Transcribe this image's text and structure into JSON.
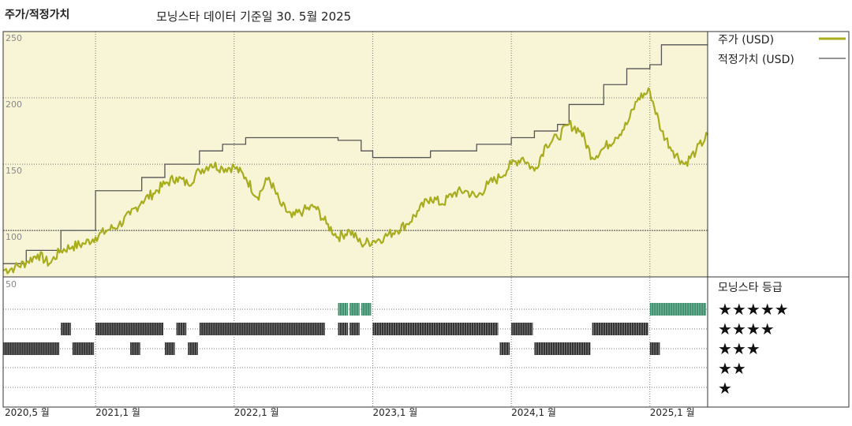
{
  "header": {
    "title": "주가/적정가치",
    "subtitle": "모닝스타 데이터 기준일 30. 5월 2025"
  },
  "colors": {
    "price": "#a8ad1e",
    "fair": "#555555",
    "upper_bg": "#f8f4d6",
    "rating_5": "#3d8f6e",
    "rating_other": "#333333",
    "grid": "#777777"
  },
  "legend": {
    "price_label": "주가 (USD)",
    "fair_label": "적정가치 (USD)"
  },
  "rating_panel": {
    "title": "모닝스타 등급",
    "stars": [
      "★★★★★",
      "★★★★",
      "★★★",
      "★★",
      "★"
    ],
    "scale_label": "50"
  },
  "chart_data": {
    "type": "line",
    "title": "주가/적정가치",
    "subtitle": "모닝스타 데이터 기준일 30. 5월 2025",
    "xlabel": "",
    "ylabel": "",
    "x_range": [
      "2020-05",
      "2025-06"
    ],
    "ylim": [
      65,
      250
    ],
    "y_ticks": [
      100,
      150,
      200,
      250
    ],
    "x_tick_labels": [
      {
        "date": "2020-05",
        "label": "2020,5 월"
      },
      {
        "date": "2021-01",
        "label": "2021,1 월"
      },
      {
        "date": "2022-01",
        "label": "2022,1 월"
      },
      {
        "date": "2023-01",
        "label": "2023,1 월"
      },
      {
        "date": "2024-01",
        "label": "2024,1 월"
      },
      {
        "date": "2025-01",
        "label": "2025,1 월"
      }
    ],
    "grid": true,
    "legend_position": "right",
    "series": [
      {
        "name": "적정가치 (USD)",
        "kind": "step",
        "points": [
          [
            "2020-05",
            75
          ],
          [
            "2020-07",
            85
          ],
          [
            "2020-10",
            100
          ],
          [
            "2021-01",
            130
          ],
          [
            "2021-05",
            140
          ],
          [
            "2021-07",
            150
          ],
          [
            "2021-10",
            160
          ],
          [
            "2021-12",
            165
          ],
          [
            "2022-02",
            170
          ],
          [
            "2022-05",
            170
          ],
          [
            "2022-10",
            168
          ],
          [
            "2022-12",
            160
          ],
          [
            "2023-01",
            155
          ],
          [
            "2023-06",
            160
          ],
          [
            "2023-10",
            165
          ],
          [
            "2024-01",
            170
          ],
          [
            "2024-03",
            175
          ],
          [
            "2024-05",
            180
          ],
          [
            "2024-06",
            195
          ],
          [
            "2024-09",
            210
          ],
          [
            "2024-11",
            222
          ],
          [
            "2025-01",
            225
          ],
          [
            "2025-02",
            240
          ],
          [
            "2025-06",
            240
          ]
        ]
      },
      {
        "name": "주가 (USD)",
        "kind": "line",
        "points": [
          [
            "2020-05",
            70
          ],
          [
            "2020-06",
            72
          ],
          [
            "2020-07",
            76
          ],
          [
            "2020-08",
            82
          ],
          [
            "2020-09",
            75
          ],
          [
            "2020-10",
            85
          ],
          [
            "2020-11",
            88
          ],
          [
            "2020-12",
            90
          ],
          [
            "2021-01",
            95
          ],
          [
            "2021-02",
            100
          ],
          [
            "2021-03",
            104
          ],
          [
            "2021-04",
            112
          ],
          [
            "2021-05",
            122
          ],
          [
            "2021-06",
            128
          ],
          [
            "2021-07",
            135
          ],
          [
            "2021-08",
            140
          ],
          [
            "2021-09",
            135
          ],
          [
            "2021-10",
            145
          ],
          [
            "2021-11",
            150
          ],
          [
            "2021-12",
            147
          ],
          [
            "2022-01",
            148
          ],
          [
            "2022-02",
            140
          ],
          [
            "2022-03",
            125
          ],
          [
            "2022-04",
            140
          ],
          [
            "2022-05",
            120
          ],
          [
            "2022-06",
            110
          ],
          [
            "2022-07",
            115
          ],
          [
            "2022-08",
            118
          ],
          [
            "2022-09",
            105
          ],
          [
            "2022-10",
            95
          ],
          [
            "2022-11",
            100
          ],
          [
            "2022-12",
            90
          ],
          [
            "2023-01",
            92
          ],
          [
            "2023-02",
            95
          ],
          [
            "2023-03",
            100
          ],
          [
            "2023-04",
            105
          ],
          [
            "2023-05",
            115
          ],
          [
            "2023-06",
            125
          ],
          [
            "2023-07",
            120
          ],
          [
            "2023-08",
            128
          ],
          [
            "2023-09",
            130
          ],
          [
            "2023-10",
            125
          ],
          [
            "2023-11",
            135
          ],
          [
            "2023-12",
            140
          ],
          [
            "2024-01",
            150
          ],
          [
            "2024-02",
            155
          ],
          [
            "2024-03",
            145
          ],
          [
            "2024-04",
            165
          ],
          [
            "2024-05",
            170
          ],
          [
            "2024-06",
            180
          ],
          [
            "2024-07",
            175
          ],
          [
            "2024-08",
            155
          ],
          [
            "2024-09",
            162
          ],
          [
            "2024-10",
            170
          ],
          [
            "2024-11",
            180
          ],
          [
            "2024-12",
            200
          ],
          [
            "2025-01",
            205
          ],
          [
            "2025-02",
            175
          ],
          [
            "2025-03",
            160
          ],
          [
            "2025-04",
            150
          ],
          [
            "2025-05",
            160
          ],
          [
            "2025-06",
            172
          ]
        ]
      }
    ],
    "rating_history": [
      {
        "stars": 5,
        "ranges": [
          [
            "2022-10",
            "2022-11"
          ],
          [
            "2022-11",
            "2022-12"
          ],
          [
            "2022-12",
            "2023-01"
          ],
          [
            "2025-01",
            "2025-06"
          ]
        ]
      },
      {
        "stars": 4,
        "ranges": [
          [
            "2020-10",
            "2020-11"
          ],
          [
            "2021-01",
            "2021-07"
          ],
          [
            "2021-08",
            "2021-09"
          ],
          [
            "2021-10",
            "2022-09"
          ],
          [
            "2022-10",
            "2022-11"
          ],
          [
            "2022-11",
            "2022-12"
          ],
          [
            "2023-01",
            "2023-12"
          ],
          [
            "2024-01",
            "2024-03"
          ],
          [
            "2024-08",
            "2025-01"
          ]
        ]
      },
      {
        "stars": 3,
        "ranges": [
          [
            "2020-05",
            "2020-10"
          ],
          [
            "2020-11",
            "2021-01"
          ],
          [
            "2021-04",
            "2021-05"
          ],
          [
            "2021-07",
            "2021-08"
          ],
          [
            "2021-09",
            "2021-10"
          ],
          [
            "2023-12",
            "2024-01"
          ],
          [
            "2024-03",
            "2024-08"
          ],
          [
            "2025-01",
            "2025-02"
          ]
        ]
      }
    ]
  }
}
